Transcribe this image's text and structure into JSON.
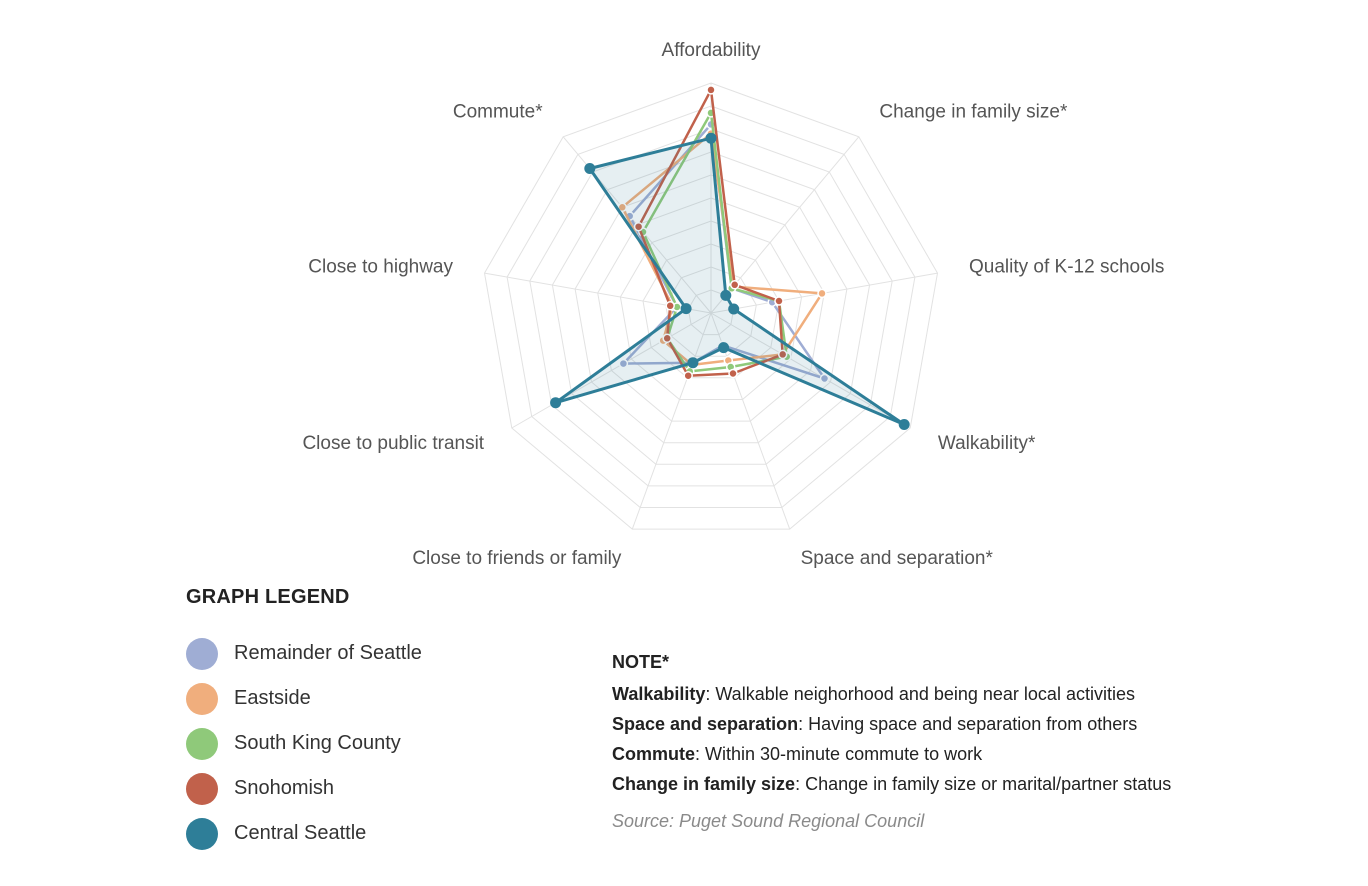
{
  "chart_data": {
    "type": "radar",
    "axes": [
      "Affordability",
      "Change in family size*",
      "Quality of K-12 schools",
      "Walkability*",
      "Space and separation*",
      "Close to friends or family",
      "Close to public transit",
      "Close to highway",
      "Commute*"
    ],
    "range": [
      0,
      10
    ],
    "grid_rings": 10,
    "series": [
      {
        "name": "Remainder of Seattle",
        "color": "#9fadd4",
        "values": [
          8.2,
          1.4,
          2.7,
          5.7,
          1.5,
          2.3,
          4.4,
          1.5,
          5.5
        ]
      },
      {
        "name": "Eastside",
        "color": "#f0ae7d",
        "values": [
          7.8,
          1.5,
          4.9,
          3.6,
          2.2,
          2.4,
          2.4,
          1.7,
          6.0
        ]
      },
      {
        "name": "South King County",
        "color": "#8fc97a",
        "values": [
          8.7,
          1.4,
          3.0,
          3.8,
          2.5,
          2.7,
          2.2,
          1.5,
          4.6
        ]
      },
      {
        "name": "Snohomish",
        "color": "#c1614b",
        "values": [
          9.7,
          1.6,
          3.0,
          3.6,
          2.8,
          2.9,
          2.2,
          1.8,
          4.9
        ]
      },
      {
        "name": "Central Seattle",
        "color": "#2e7e98",
        "values": [
          7.6,
          1.0,
          1.0,
          9.7,
          1.6,
          2.3,
          7.8,
          1.1,
          8.2
        ]
      }
    ],
    "fill_series": "Central Seattle"
  },
  "legend": {
    "title": "GRAPH LEGEND",
    "items": [
      {
        "label": "Remainder of Seattle",
        "color": "#9fadd4"
      },
      {
        "label": "Eastside",
        "color": "#f0ae7d"
      },
      {
        "label": "South King County",
        "color": "#8fc97a"
      },
      {
        "label": "Snohomish",
        "color": "#c1614b"
      },
      {
        "label": "Central Seattle",
        "color": "#2e7e98"
      }
    ]
  },
  "note": {
    "title": "NOTE*",
    "lines": [
      {
        "term": "Walkability",
        "text": ": Walkable neighorhood and being near local activities"
      },
      {
        "term": "Space and separation",
        "text": ": Having space and separation from others"
      },
      {
        "term": "Commute",
        "text": ": Within 30-minute commute to work"
      },
      {
        "term": "Change in family size",
        "text": ": Change in family size or marital/partner status"
      }
    ],
    "source": "Source: Puget Sound Regional Council"
  }
}
